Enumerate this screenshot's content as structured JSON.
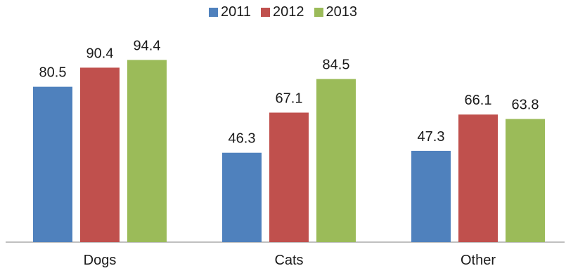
{
  "chart_data": {
    "type": "bar",
    "categories": [
      "Dogs",
      "Cats",
      "Other"
    ],
    "series": [
      {
        "name": "2011",
        "values": [
          80.5,
          46.3,
          47.3
        ],
        "color": "#4f81bd"
      },
      {
        "name": "2012",
        "values": [
          90.4,
          67.1,
          66.1
        ],
        "color": "#c0504d"
      },
      {
        "name": "2013",
        "values": [
          94.4,
          84.5,
          63.8
        ],
        "color": "#9bbb59"
      }
    ],
    "title": "",
    "xlabel": "",
    "ylabel": "",
    "ylim": [
      0,
      100
    ],
    "legend": "top",
    "grid": false
  }
}
